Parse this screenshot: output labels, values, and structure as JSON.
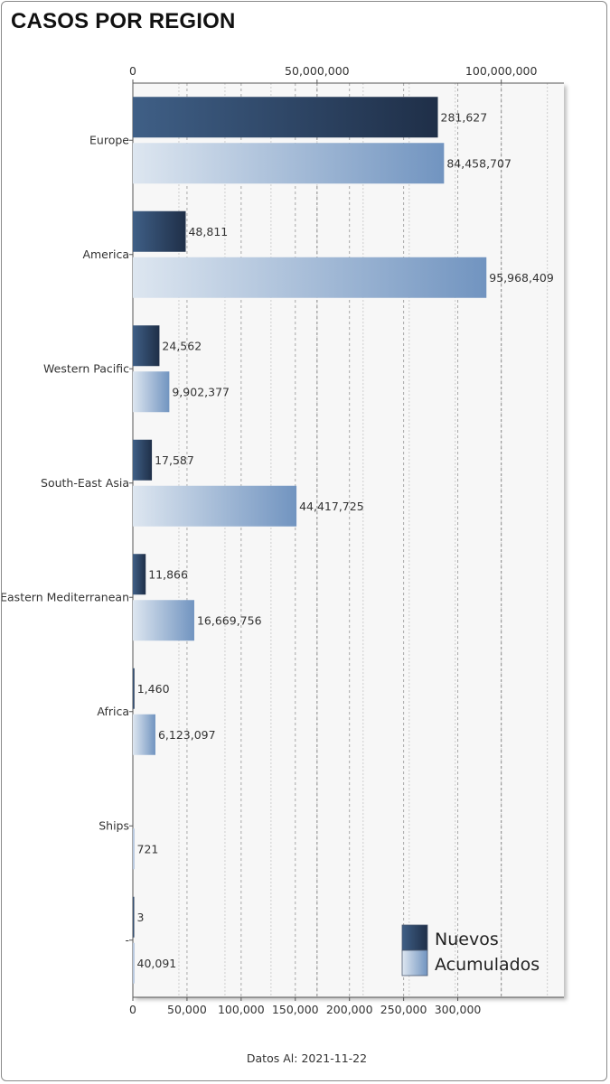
{
  "header": {
    "title": "CASOS POR REGION"
  },
  "footer": {
    "label": "Datos Al:",
    "date": "2021-11-22"
  },
  "colors": {
    "nuevos_light": "#3f5f86",
    "nuevos_dark": "#1f2f48",
    "acumulados_light": "#dde6f0",
    "acumulados_dark": "#7194c0",
    "plot_background": "#f7f7f7"
  },
  "chart_data": {
    "type": "bar",
    "orientation": "horizontal",
    "title": "CASOS POR REGION",
    "categories": [
      "Europe",
      "America",
      "Western Pacific",
      "South-East Asia",
      "Eastern Mediterranean",
      "Africa",
      "Ships",
      "-"
    ],
    "series": [
      {
        "name": "Nuevos",
        "axis": "bottom",
        "values": [
          281627,
          48811,
          24562,
          17587,
          11866,
          1460,
          0,
          3
        ],
        "labels": [
          "281,627",
          "48,811",
          "24,562",
          "17,587",
          "11,866",
          "1,460",
          "",
          "3"
        ]
      },
      {
        "name": "Acumulados",
        "axis": "top",
        "values": [
          84458707,
          95968409,
          9902377,
          44417725,
          16669756,
          6123097,
          721,
          40091
        ],
        "labels": [
          "84,458,707",
          "95,968,409",
          "9,902,377",
          "44,417,725",
          "16,669,756",
          "6,123,097",
          "721",
          "40,091"
        ]
      }
    ],
    "top_axis": {
      "range": [
        0,
        117000000
      ],
      "ticks": [
        0,
        50000000,
        100000000
      ],
      "tick_labels": [
        "0",
        "50,000,000",
        "100,000,000"
      ]
    },
    "bottom_axis": {
      "range": [
        0,
        398000
      ],
      "ticks": [
        0,
        50000,
        100000,
        150000,
        200000,
        250000,
        300000
      ],
      "tick_labels": [
        "0",
        "50,000",
        "100,000",
        "150,000",
        "200,000",
        "250,000",
        "300,000"
      ]
    },
    "grid": true,
    "legend": {
      "position": "bottom-right",
      "entries": [
        "Nuevos",
        "Acumulados"
      ]
    }
  }
}
